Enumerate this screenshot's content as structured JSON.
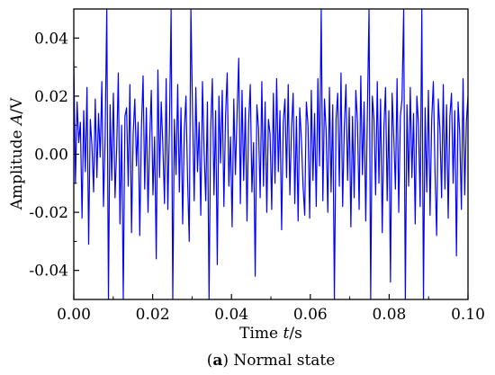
{
  "chart_data": {
    "type": "line",
    "x_axis": {
      "label_main": "Time ",
      "label_var": "t",
      "label_unit": "/s",
      "range": [
        0.0,
        0.1
      ],
      "ticks": [
        "0.00",
        "0.02",
        "0.04",
        "0.06",
        "0.08",
        "0.10"
      ]
    },
    "y_axis": {
      "label_main": "Amplitude ",
      "label_var": "A",
      "label_unit": "/V",
      "range": [
        -0.05,
        0.05
      ],
      "ticks": [
        "-0.04",
        "-0.02",
        "0.00",
        "0.02",
        "0.04"
      ]
    },
    "caption": {
      "letter": "a",
      "open": "(",
      "close": ")",
      "text": " Normal state"
    },
    "grid": false,
    "legend": "none",
    "series_color": "#0000ff",
    "series": [
      {
        "values": [
          0.032,
          -0.01,
          0.018,
          0.004,
          0.011,
          -0.022,
          0.015,
          -0.006,
          0.023,
          -0.031,
          0.012,
          0.003,
          -0.013,
          0.019,
          -0.008,
          0.014,
          -0.001,
          0.025,
          -0.018,
          0.006,
          0.05,
          -0.05,
          0.017,
          -0.009,
          0.021,
          -0.015,
          0.002,
          0.028,
          -0.024,
          0.01,
          -0.05,
          0.013,
          0.016,
          -0.011,
          0.024,
          -0.027,
          0.007,
          0.019,
          -0.004,
          0.011,
          -0.028,
          0.009,
          0.027,
          -0.012,
          0.016,
          -0.02,
          0.005,
          0.022,
          -0.014,
          0.006,
          -0.036,
          0.029,
          -0.008,
          0.018,
          0.003,
          -0.017,
          0.026,
          -0.019,
          0.01,
          0.05,
          -0.05,
          0.012,
          -0.007,
          0.024,
          -0.013,
          0.016,
          -0.024,
          0.008,
          0.02,
          -0.009,
          -0.03,
          0.05,
          0.014,
          -0.016,
          0.023,
          -0.006,
          0.011,
          -0.021,
          0.025,
          0.001,
          -0.016,
          0.018,
          -0.05,
          0.009,
          0.026,
          -0.014,
          0.015,
          -0.038,
          0.02,
          -0.003,
          0.022,
          -0.018,
          0.013,
          0.028,
          -0.011,
          0.006,
          -0.025,
          0.019,
          -0.007,
          0.014,
          0.033,
          -0.017,
          0.022,
          -0.009,
          0.016,
          -0.023,
          0.011,
          0.024,
          -0.013,
          0.004,
          -0.042,
          0.017,
          0.009,
          -0.015,
          0.025,
          -0.011,
          0.018,
          -0.02,
          0.012,
          0.007,
          -0.019,
          0.021,
          -0.01,
          0.026,
          -0.006,
          0.015,
          -0.026,
          0.011,
          0.019,
          -0.008,
          0.024,
          -0.014,
          0.009,
          0.021,
          -0.017,
          0.013,
          -0.023,
          0.016,
          0.005,
          -0.011,
          -0.021,
          0.018,
          0.01,
          -0.022,
          0.022,
          -0.009,
          0.014,
          -0.018,
          0.026,
          -0.004,
          0.05,
          -0.016,
          0.019,
          0.008,
          -0.02,
          0.023,
          -0.013,
          0.017,
          -0.05,
          0.012,
          0.021,
          -0.011,
          0.028,
          -0.018,
          0.009,
          0.024,
          -0.009,
          0.016,
          -0.025,
          0.013,
          -0.015,
          0.022,
          0.011,
          -0.019,
          0.027,
          -0.007,
          0.018,
          -0.023,
          0.014,
          0.05,
          -0.05,
          0.02,
          0.012,
          -0.014,
          0.025,
          -0.01,
          0.019,
          -0.027,
          0.009,
          0.023,
          -0.016,
          0.015,
          -0.044,
          0.021,
          0.006,
          -0.012,
          0.026,
          -0.02,
          0.013,
          0.019,
          0.05,
          -0.05,
          0.017,
          -0.011,
          0.023,
          -0.008,
          0.014,
          -0.024,
          0.02,
          0.01,
          -0.018,
          0.05,
          -0.05,
          0.016,
          -0.013,
          0.022,
          -0.021,
          0.012,
          0.025,
          -0.006,
          -0.028,
          0.019,
          0.008,
          -0.015,
          0.024,
          -0.012,
          0.017,
          -0.022,
          0.013,
          0.021,
          -0.01,
          0.015,
          -0.035,
          0.018,
          0.007,
          -0.019,
          0.026,
          -0.014,
          0.011,
          0.02
        ]
      }
    ]
  }
}
